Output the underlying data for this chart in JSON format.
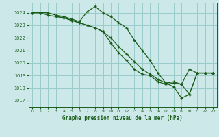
{
  "background_color": "#cce8e8",
  "grid_color": "#99cccc",
  "line_color": "#1a5c1a",
  "marker": "+",
  "title": "Graphe pression niveau de la mer (hPa)",
  "xlim": [
    -0.5,
    23.5
  ],
  "ylim": [
    1016.5,
    1024.8
  ],
  "yticks": [
    1017,
    1018,
    1019,
    1020,
    1021,
    1022,
    1023,
    1024
  ],
  "xticks": [
    0,
    1,
    2,
    3,
    4,
    5,
    6,
    7,
    8,
    9,
    10,
    11,
    12,
    13,
    14,
    15,
    16,
    17,
    18,
    19,
    20,
    21,
    22,
    23
  ],
  "line1": {
    "x": [
      0,
      1,
      2,
      3,
      4,
      5,
      6,
      7,
      8,
      9,
      10,
      11,
      12,
      13,
      14,
      15,
      16,
      17,
      18,
      19,
      20,
      21,
      22,
      23
    ],
    "y": [
      1024.0,
      1024.0,
      1024.0,
      1023.8,
      1023.7,
      1023.5,
      1023.3,
      1024.1,
      1024.5,
      1024.0,
      1023.7,
      1023.2,
      1022.8,
      1021.8,
      1021.0,
      1020.2,
      1019.2,
      1018.4,
      1018.1,
      1017.2,
      1017.5,
      1019.2,
      1019.2,
      1019.2
    ]
  },
  "line2": {
    "x": [
      0,
      1,
      2,
      3,
      4,
      5,
      6,
      7,
      8,
      9,
      10,
      11,
      12,
      13,
      14,
      15,
      16,
      17,
      18,
      19,
      20,
      21,
      22,
      23
    ],
    "y": [
      1024.0,
      1024.0,
      1023.8,
      1023.7,
      1023.6,
      1023.4,
      1023.2,
      1023.0,
      1022.8,
      1022.5,
      1022.0,
      1021.3,
      1020.7,
      1020.1,
      1019.5,
      1019.1,
      1018.7,
      1018.4,
      1018.5,
      1018.3,
      1019.5,
      1019.2,
      1019.2,
      1019.2
    ]
  },
  "line3": {
    "x": [
      3,
      4,
      5,
      6,
      7,
      8,
      9,
      10,
      11,
      12,
      13,
      14,
      15,
      16,
      17,
      18,
      19,
      20,
      21,
      22,
      23
    ],
    "y": [
      1023.7,
      1023.6,
      1023.4,
      1023.2,
      1023.0,
      1022.8,
      1022.5,
      1021.6,
      1020.8,
      1020.2,
      1019.5,
      1019.1,
      1019.0,
      1018.5,
      1018.3,
      1018.4,
      1018.3,
      1017.5,
      1019.2,
      1019.2,
      1019.2
    ]
  }
}
